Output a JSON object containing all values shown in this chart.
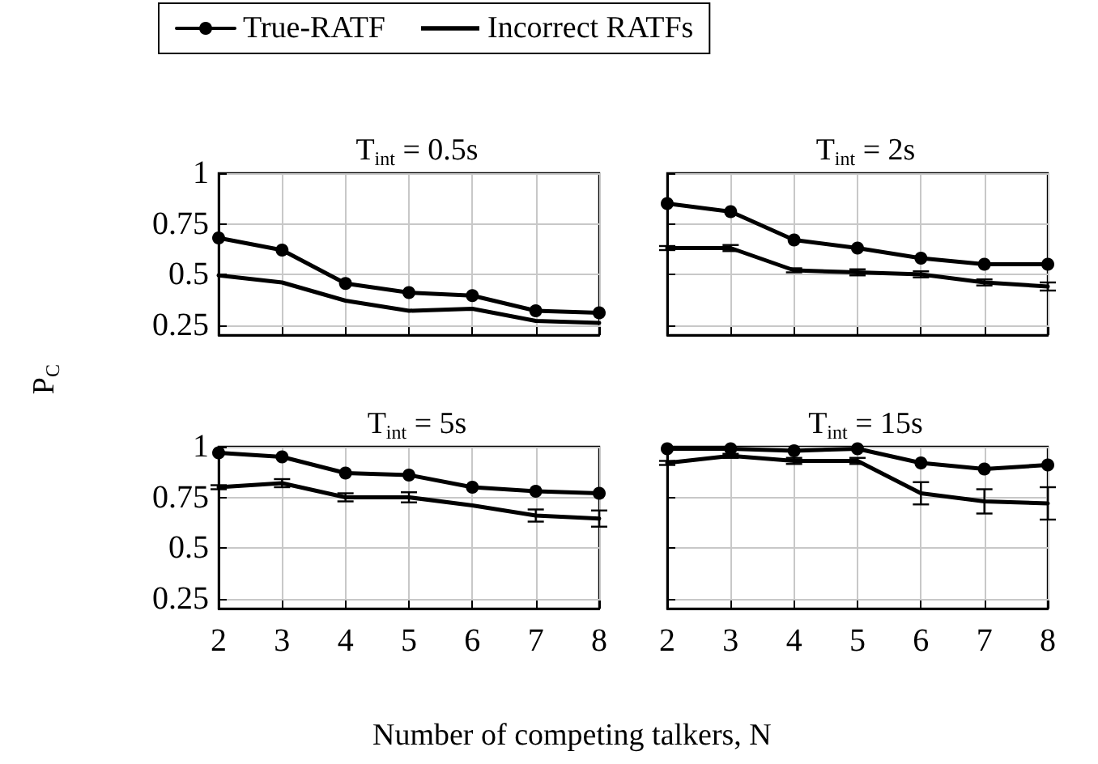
{
  "chart_data": [
    {
      "type": "line",
      "title": "T$_{int}$ = 0.5s",
      "ylabel": "P$_{C}$",
      "x": [
        2,
        3,
        4,
        5,
        6,
        7,
        8
      ],
      "series": [
        {
          "name": "True-RATF",
          "color": "#000000",
          "marker": "circle",
          "values": [
            0.68,
            0.62,
            0.455,
            0.41,
            0.395,
            0.32,
            0.31
          ]
        },
        {
          "name": "Incorrect RATFs",
          "color": "#000000",
          "marker": "none",
          "values": [
            0.495,
            0.46,
            0.37,
            0.32,
            0.33,
            0.27,
            0.26
          ]
        }
      ],
      "xlim": [
        2,
        8
      ],
      "xticks": [
        2,
        3,
        4,
        5,
        6,
        7,
        8
      ],
      "ylim": [
        0.2,
        1
      ],
      "yticks": [
        0.25,
        0.5,
        0.75,
        1
      ],
      "grid": true,
      "tick_labels": "y",
      "legend": "top"
    },
    {
      "type": "line",
      "title": "T$_{int}$ = 2s",
      "x": [
        2,
        3,
        4,
        5,
        6,
        7,
        8
      ],
      "series": [
        {
          "color": "#000000",
          "marker": "circle",
          "values": [
            0.85,
            0.81,
            0.67,
            0.63,
            0.58,
            0.55,
            0.55
          ]
        },
        {
          "color": "#000000",
          "marker": "none",
          "values": [
            0.63,
            0.63,
            0.52,
            0.51,
            0.5,
            0.46,
            0.44
          ],
          "errors": [
            0.01,
            0.015,
            0.01,
            0.015,
            0.015,
            0.015,
            0.02
          ]
        }
      ],
      "xlim": [
        2,
        8
      ],
      "xticks": [
        2,
        3,
        4,
        5,
        6,
        7,
        8
      ],
      "ylim": [
        0.2,
        1
      ],
      "yticks": [
        0.25,
        0.5,
        0.75,
        1
      ],
      "grid": true,
      "tick_labels": false
    },
    {
      "type": "line",
      "title": "T$_{int}$ = 5s",
      "xlabel": "Number of competing talkers, N",
      "x": [
        2,
        3,
        4,
        5,
        6,
        7,
        8
      ],
      "series": [
        {
          "color": "#000000",
          "marker": "circle",
          "values": [
            0.97,
            0.95,
            0.87,
            0.86,
            0.8,
            0.78,
            0.77
          ]
        },
        {
          "color": "#000000",
          "marker": "none",
          "values": [
            0.8,
            0.82,
            0.75,
            0.75,
            0.71,
            0.66,
            0.645
          ],
          "errors": [
            0.01,
            0.02,
            0.02,
            0.025,
            null,
            0.03,
            0.04
          ]
        }
      ],
      "xlim": [
        2,
        8
      ],
      "xticks": [
        2,
        3,
        4,
        5,
        6,
        7,
        8
      ],
      "ylim": [
        0.2,
        1
      ],
      "yticks": [
        0.25,
        0.5,
        0.75,
        1
      ],
      "grid": true
    },
    {
      "type": "line",
      "title": "T$_{int}$ = 15s",
      "x": [
        2,
        3,
        4,
        5,
        6,
        7,
        8
      ],
      "series": [
        {
          "color": "#000000",
          "marker": "circle",
          "values": [
            0.99,
            0.99,
            0.98,
            0.99,
            0.92,
            0.89,
            0.91
          ]
        },
        {
          "color": "#000000",
          "marker": "none",
          "values": [
            0.92,
            0.955,
            0.93,
            0.93,
            0.77,
            0.73,
            0.72
          ],
          "errors": [
            0.01,
            0.01,
            0.015,
            0.015,
            0.055,
            0.06,
            0.08
          ]
        }
      ],
      "xlim": [
        2,
        8
      ],
      "xticks": [
        2,
        3,
        4,
        5,
        6,
        7,
        8
      ],
      "ylim": [
        0.2,
        1
      ],
      "yticks": [
        0.25,
        0.5,
        0.75,
        1
      ],
      "grid": true,
      "tick_labels": "x"
    }
  ]
}
